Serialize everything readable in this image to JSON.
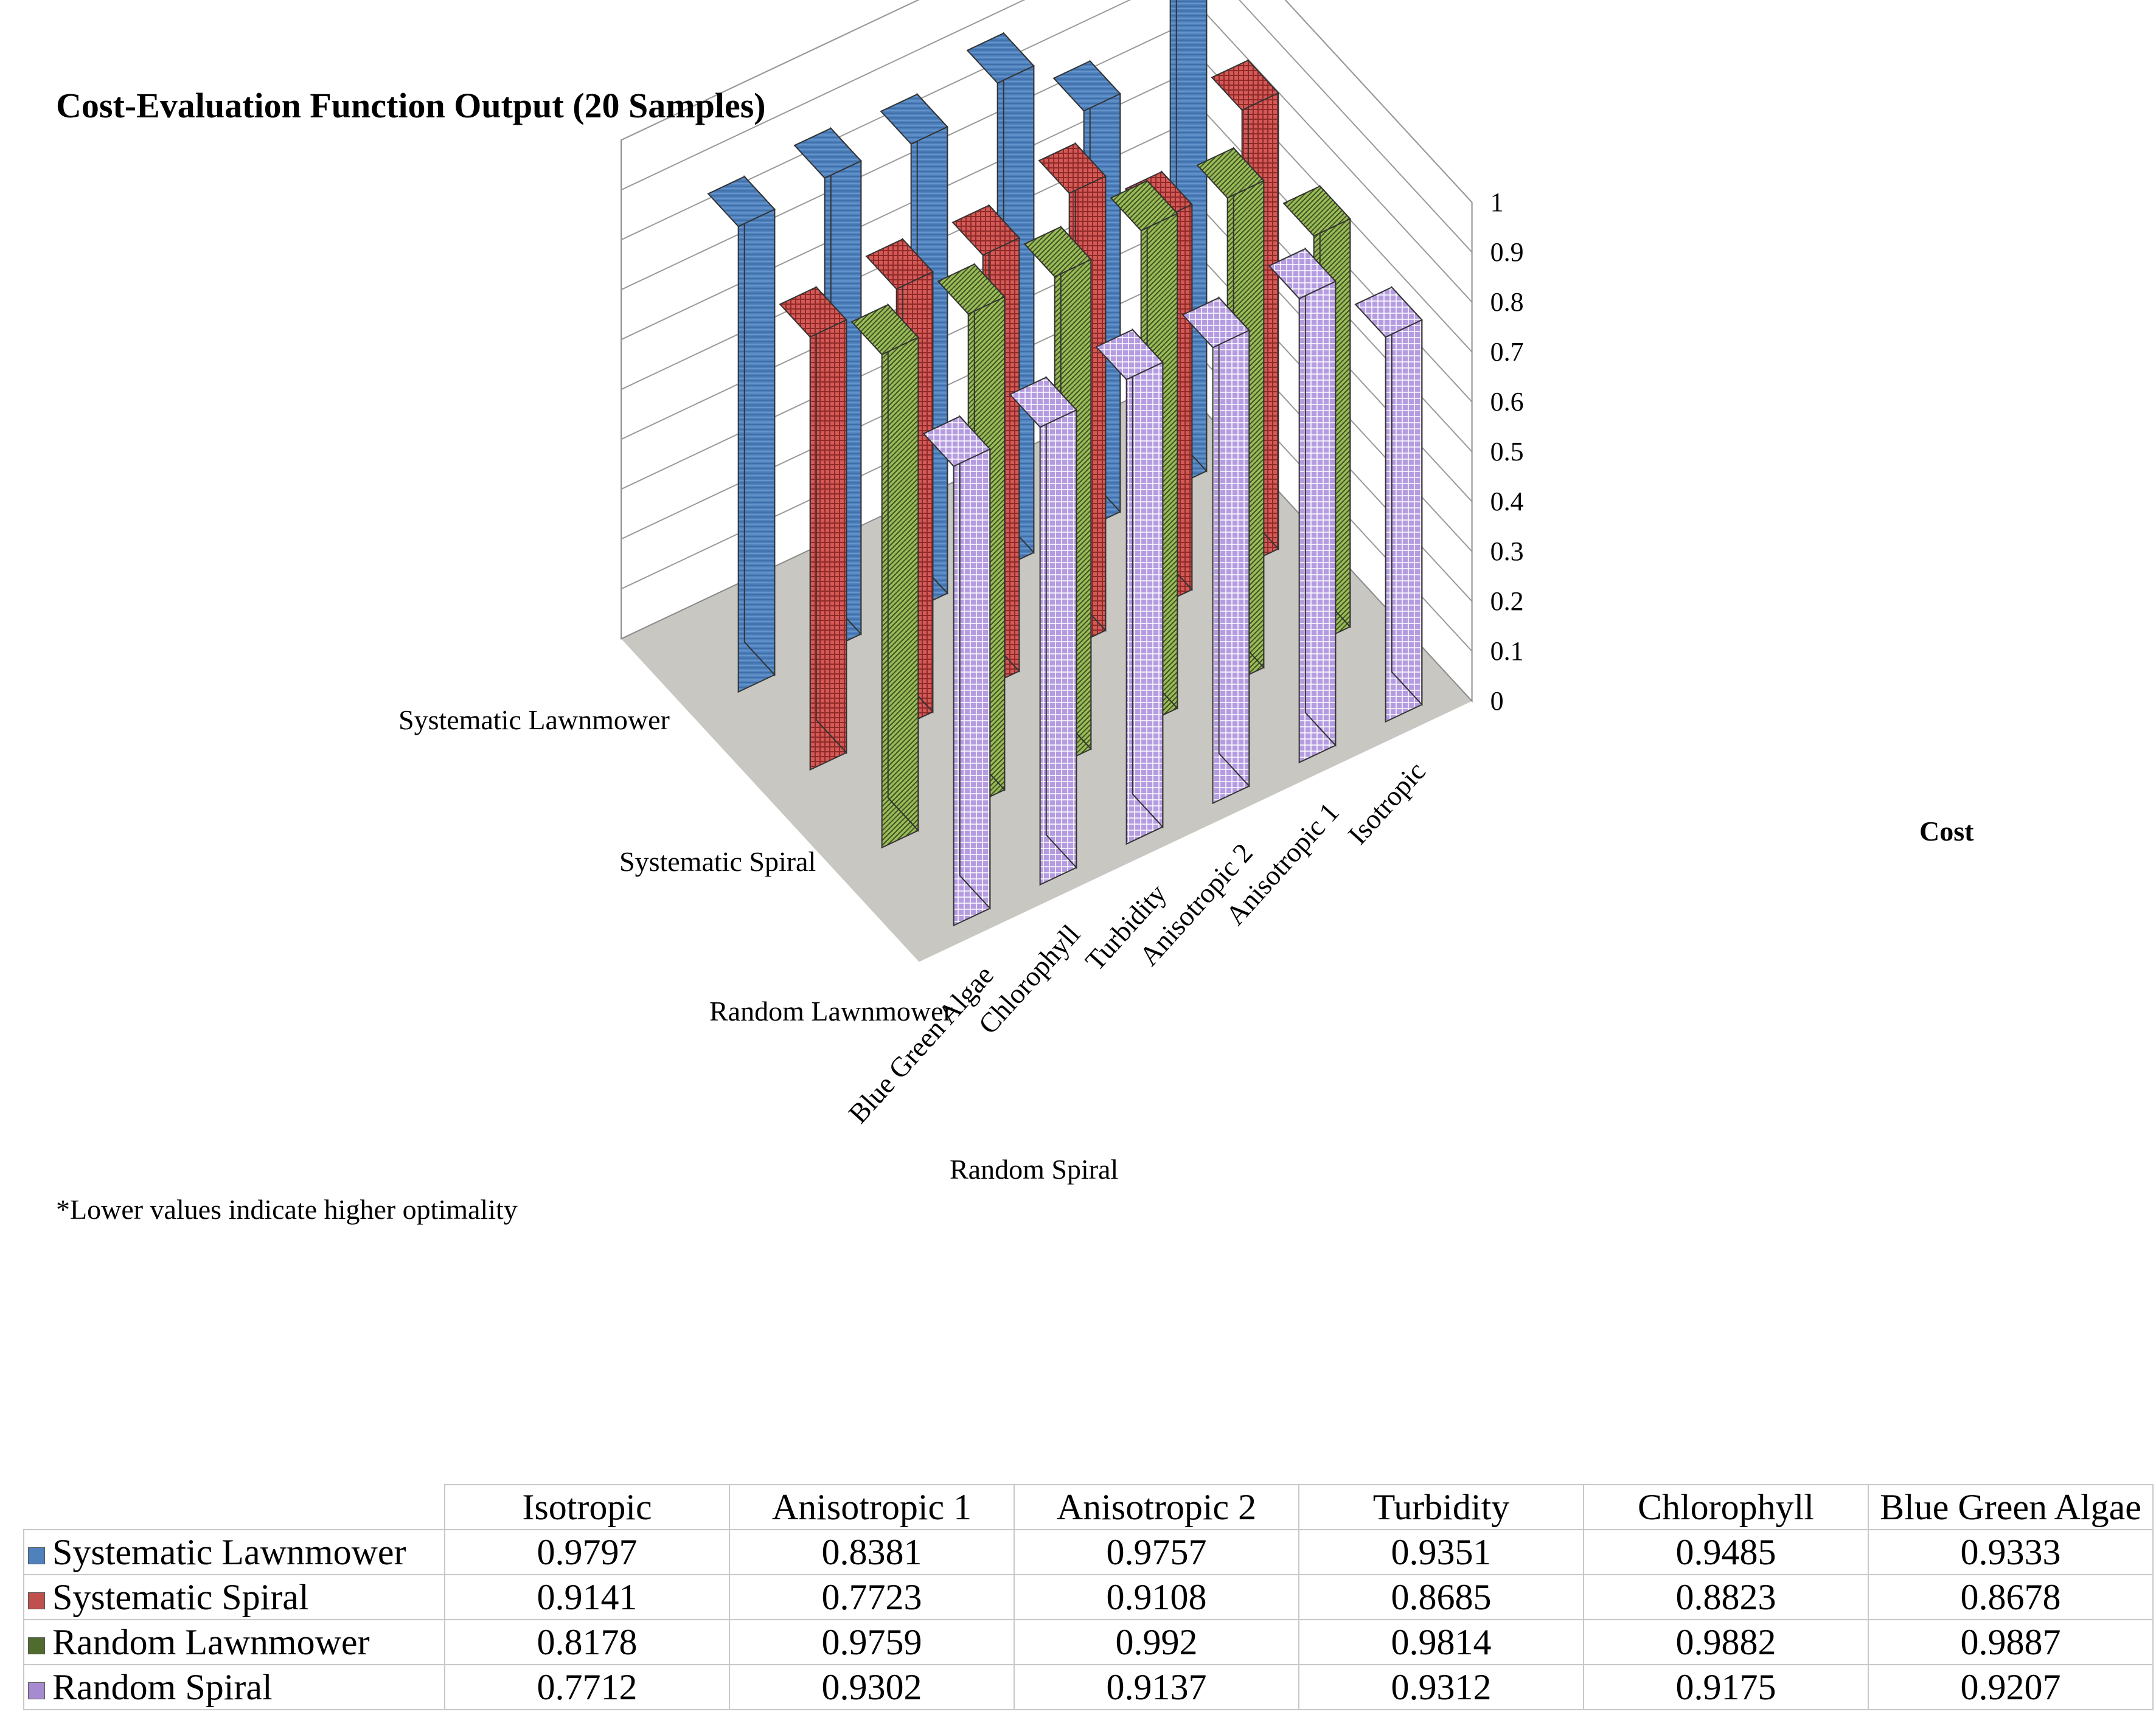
{
  "chart_data": {
    "type": "bar",
    "subtype": "3d-column",
    "title": "Cost-Evaluation Function Output (20 Samples)",
    "zlabel": "Cost",
    "ylim": [
      0,
      1
    ],
    "yticks": [
      "1",
      "0.9",
      "0.8",
      "0.7",
      "0.6",
      "0.5",
      "0.4",
      "0.3",
      "0.2",
      "0.1",
      "0"
    ],
    "categories": [
      "Isotropic",
      "Anisotropic 1",
      "Anisotropic 2",
      "Turbidity",
      "Chlorophyll",
      "Blue Green Algae"
    ],
    "series": [
      {
        "name": "Systematic Lawnmower",
        "color": "#4f81bd",
        "values": [
          0.9797,
          0.8381,
          0.9757,
          0.9351,
          0.9485,
          0.9333
        ]
      },
      {
        "name": "Systematic Spiral",
        "color": "#c0504d",
        "values": [
          0.9141,
          0.7723,
          0.9108,
          0.8685,
          0.8823,
          0.8678
        ]
      },
      {
        "name": "Random Lawnmower",
        "color": "#9bbb59",
        "values": [
          0.8178,
          0.9759,
          0.992,
          0.9814,
          0.9882,
          0.9887
        ]
      },
      {
        "name": "Random Spiral",
        "color": "#a78bd0",
        "values": [
          0.7712,
          0.9302,
          0.9137,
          0.9312,
          0.9175,
          0.9207
        ]
      }
    ],
    "legend": "table-bottom",
    "grid": true
  },
  "extra_series": {
    "color": "#2e2e2e"
  },
  "footnote": "*Lower values indicate higher optimality"
}
